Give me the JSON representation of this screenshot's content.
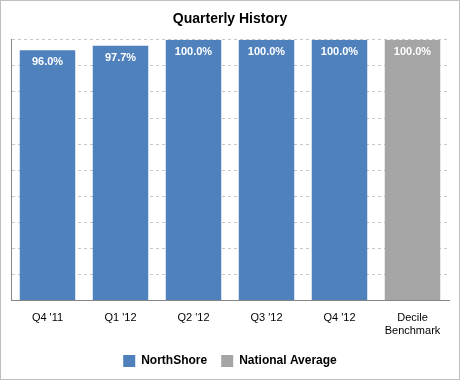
{
  "chart_data": {
    "type": "bar",
    "title": "Quarterly History",
    "categories": [
      "Q4 '11",
      "Q1 '12",
      "Q2 '12",
      "Q3 '12",
      "Q4 '12",
      "Decile Benchmark"
    ],
    "series": [
      {
        "name": "NorthShore",
        "color": "#4f81bd",
        "values": [
          96.0,
          97.7,
          100.0,
          100.0,
          100.0,
          null
        ],
        "value_labels": [
          "96.0%",
          "97.7%",
          "100.0%",
          "100.0%",
          "100.0%",
          null
        ]
      },
      {
        "name": "National Average",
        "color": "#a5a5a5",
        "values": [
          null,
          null,
          null,
          null,
          null,
          100.0
        ],
        "value_labels": [
          null,
          null,
          null,
          null,
          null,
          "100.0%"
        ]
      }
    ],
    "ylim": [
      0,
      100
    ],
    "yticks": [
      0,
      10,
      20,
      30,
      40,
      50,
      60,
      70,
      80,
      90,
      100
    ],
    "grid": true,
    "legend": "bottom",
    "data_labels": true,
    "tick_labels": "x"
  }
}
